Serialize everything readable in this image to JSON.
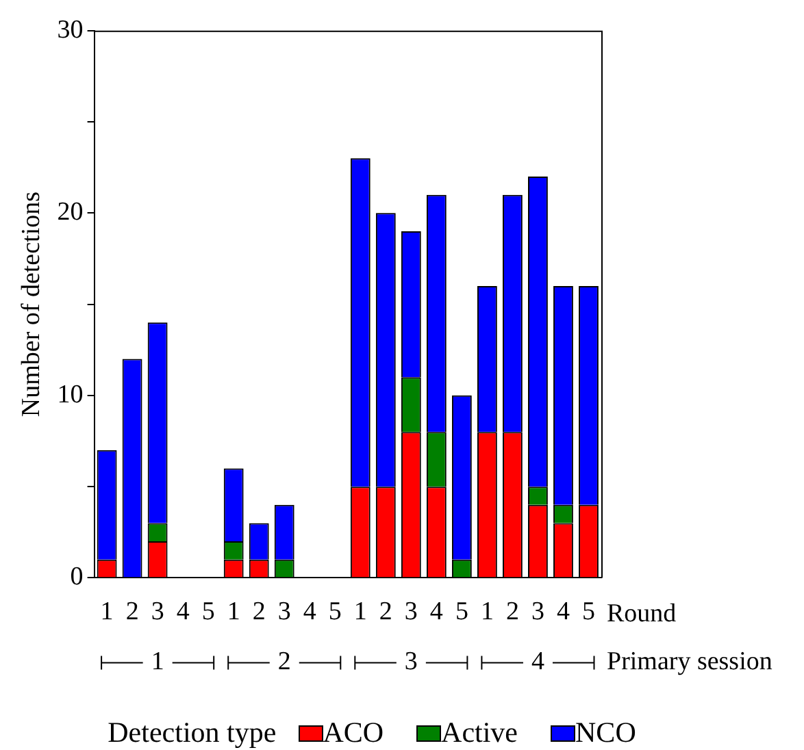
{
  "chart_data": {
    "type": "bar",
    "stacked": true,
    "ylabel": "Number of detections",
    "xlabel": "Round",
    "legend_title": "Detection type",
    "legend": "bottom",
    "grid": false,
    "categories": [
      "1",
      "2",
      "3",
      "4",
      "5",
      "1",
      "2",
      "3",
      "4",
      "5",
      "1",
      "2",
      "3",
      "4",
      "5",
      "1",
      "2",
      "3",
      "4",
      "5"
    ],
    "ylim": [
      0,
      30
    ],
    "yticks": [
      0,
      {
        "value": 5,
        "label": null
      },
      10,
      {
        "value": 15,
        "label": null
      },
      20,
      {
        "value": 25,
        "label": null
      },
      30
    ],
    "series": [
      {
        "name": "ACO",
        "color": "#ff0000",
        "values": [
          1,
          0,
          2,
          0,
          0,
          1,
          1,
          0,
          0,
          0,
          5,
          5,
          8,
          5,
          0,
          8,
          8,
          4,
          3,
          4
        ]
      },
      {
        "name": "Active",
        "color": "#008000",
        "values": [
          0,
          0,
          1,
          0,
          0,
          1,
          0,
          1,
          0,
          0,
          0,
          0,
          3,
          3,
          1,
          0,
          0,
          1,
          1,
          0
        ]
      },
      {
        "name": "NCO",
        "color": "#0000ff",
        "values": [
          6,
          12,
          11,
          0,
          0,
          4,
          2,
          3,
          0,
          0,
          18,
          15,
          8,
          13,
          9,
          8,
          13,
          17,
          12,
          12
        ]
      }
    ],
    "annotations": [
      "1",
      "2",
      "3",
      "4",
      "Primary session"
    ]
  }
}
